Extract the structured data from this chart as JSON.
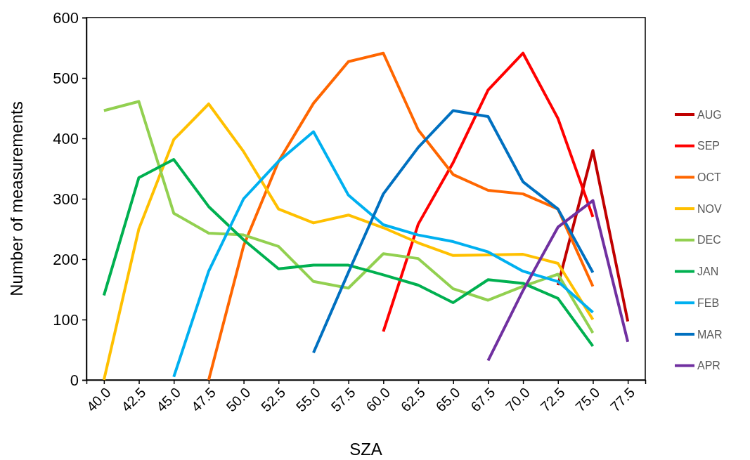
{
  "chart_data": {
    "type": "line",
    "xlabel": "SZA",
    "ylabel": "Number of measurements",
    "categories": [
      "40.0",
      "42.5",
      "45.0",
      "47.5",
      "50.0",
      "52.5",
      "55.0",
      "57.5",
      "60.0",
      "62.5",
      "65.0",
      "67.5",
      "70.0",
      "72.5",
      "75.0",
      "77.5"
    ],
    "ylim": [
      0,
      600
    ],
    "yticks": [
      0,
      100,
      200,
      300,
      400,
      500,
      600
    ],
    "grid": false,
    "legend": "right",
    "marker": "none",
    "line_style": "solid",
    "series": [
      {
        "name": "AUG",
        "color": "#c00000",
        "values": [
          null,
          null,
          null,
          null,
          null,
          null,
          null,
          null,
          null,
          null,
          null,
          null,
          null,
          157,
          380,
          97
        ]
      },
      {
        "name": "SEP",
        "color": "#ff0000",
        "values": [
          null,
          null,
          null,
          null,
          null,
          null,
          null,
          null,
          80,
          258,
          360,
          480,
          541,
          433,
          270,
          null
        ]
      },
      {
        "name": "OCT",
        "color": "#ff6600",
        "values": [
          null,
          null,
          null,
          0,
          222,
          362,
          458,
          527,
          541,
          414,
          340,
          314,
          308,
          283,
          155,
          null
        ]
      },
      {
        "name": "NOV",
        "color": "#ffc000",
        "values": [
          0,
          250,
          398,
          457,
          378,
          283,
          260,
          273,
          252,
          227,
          206,
          207,
          208,
          193,
          100,
          null
        ]
      },
      {
        "name": "DEC",
        "color": "#92d050",
        "values": [
          446,
          461,
          276,
          243,
          240,
          221,
          163,
          152,
          209,
          201,
          151,
          132,
          155,
          175,
          78,
          null
        ]
      },
      {
        "name": "JAN",
        "color": "#00b050",
        "values": [
          140,
          335,
          365,
          287,
          232,
          184,
          190,
          190,
          174,
          157,
          128,
          166,
          160,
          135,
          56,
          null
        ]
      },
      {
        "name": "FEB",
        "color": "#00b0f0",
        "values": [
          null,
          null,
          5,
          180,
          300,
          362,
          411,
          306,
          257,
          240,
          229,
          212,
          180,
          163,
          112,
          null
        ]
      },
      {
        "name": "MAR",
        "color": "#0070c0",
        "values": [
          null,
          null,
          null,
          null,
          null,
          null,
          45,
          178,
          308,
          385,
          446,
          436,
          328,
          283,
          178,
          null
        ]
      },
      {
        "name": "APR",
        "color": "#7030a0",
        "values": [
          null,
          null,
          null,
          null,
          null,
          null,
          null,
          null,
          null,
          null,
          null,
          32,
          148,
          253,
          297,
          63
        ]
      }
    ]
  }
}
